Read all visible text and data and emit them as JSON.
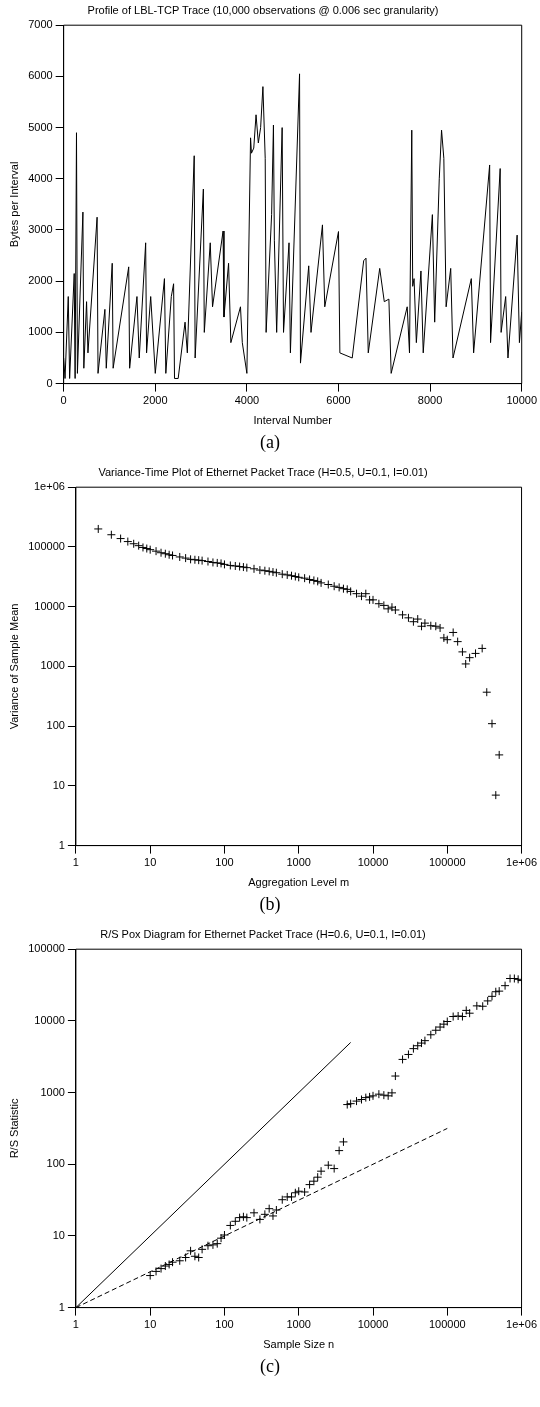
{
  "chart_data": [
    {
      "type": "line",
      "title": "Profile of LBL-TCP Trace (10,000 observations @ 0.006 sec granularity)",
      "xlabel": "Interval Number",
      "ylabel": "Bytes per Interval",
      "color": "#000000",
      "annotations": [
        "(a)"
      ],
      "xlim": [
        0,
        10000
      ],
      "ylim": [
        0,
        7000
      ],
      "xticks": [
        0,
        2000,
        4000,
        6000,
        8000,
        10000
      ],
      "yticks": [
        0,
        1000,
        2000,
        3000,
        4000,
        5000,
        6000,
        7000
      ],
      "x": [
        0,
        30,
        100,
        130,
        230,
        250,
        280,
        300,
        420,
        440,
        500,
        530,
        730,
        750,
        900,
        930,
        1060,
        1080,
        1420,
        1440,
        1600,
        1650,
        1790,
        1810,
        1900,
        2000,
        2200,
        2230,
        2350,
        2400,
        2420,
        2500,
        2650,
        2700,
        2850,
        2870,
        3050,
        3070,
        3200,
        3250,
        3480,
        3500,
        3600,
        3650,
        3860,
        3900,
        4000,
        4080,
        4100,
        4150,
        4200,
        4250,
        4300,
        4350,
        4400,
        4420,
        4540,
        4580,
        4600,
        4650,
        4770,
        4800,
        4920,
        4950,
        5150,
        5170,
        5350,
        5400,
        5650,
        5700,
        6000,
        6030,
        6300,
        6550,
        6600,
        6650,
        6900,
        7000,
        7100,
        7150,
        7500,
        7550,
        7600,
        7620,
        7650,
        7700,
        7800,
        7850,
        8050,
        8100,
        8200,
        8250,
        8300,
        8350,
        8450,
        8500,
        8900,
        8950,
        9300,
        9320,
        9530,
        9550,
        9650,
        9700,
        9900,
        9950,
        10000
      ],
      "values": [
        500,
        100,
        1700,
        100,
        2150,
        100,
        4900,
        200,
        3350,
        300,
        1600,
        600,
        3250,
        200,
        1450,
        300,
        2350,
        300,
        2280,
        300,
        1700,
        500,
        2750,
        600,
        1700,
        200,
        2050,
        200,
        1700,
        1950,
        100,
        100,
        1200,
        600,
        4450,
        500,
        3800,
        1000,
        2750,
        1500,
        2980,
        1300,
        2350,
        800,
        1500,
        800,
        200,
        4800,
        4500,
        4600,
        5250,
        4700,
        5000,
        5800,
        4400,
        1000,
        3300,
        5050,
        2800,
        1000,
        5000,
        1000,
        2750,
        600,
        6050,
        400,
        2300,
        1000,
        3100,
        1500,
        2970,
        600,
        500,
        2400,
        2450,
        600,
        2250,
        1600,
        1650,
        200,
        1500,
        600,
        4950,
        1900,
        2050,
        800,
        2200,
        600,
        3300,
        1200,
        4000,
        4950,
        4400,
        1500,
        2250,
        500,
        2050,
        600,
        4270,
        800,
        4200,
        1000,
        1700,
        500,
        2900,
        800,
        1400
      ]
    },
    {
      "type": "scatter",
      "title": "Variance-Time Plot of Ethernet Packet Trace (H=0.5, U=0.1, I=0.01)",
      "xlabel": "Aggregation Level m",
      "ylabel": "Variance of Sample Mean",
      "color": "#000000",
      "marker": "cross",
      "log": "xy",
      "annotations": [
        "(b)"
      ],
      "xlim": [
        1,
        1000000
      ],
      "ylim": [
        1,
        1000000
      ],
      "xticks": [
        1,
        10,
        100,
        1000,
        10000,
        100000,
        {
          "value": 1000000,
          "label": "1e+06"
        }
      ],
      "yticks": [
        1,
        10,
        100,
        1000,
        10000,
        100000,
        {
          "value": 1000000,
          "label": "1e+06"
        }
      ],
      "x": [
        2,
        3,
        4,
        5,
        6,
        7,
        8,
        9,
        10,
        12,
        14,
        16,
        18,
        20,
        25,
        30,
        35,
        40,
        45,
        50,
        60,
        70,
        80,
        90,
        100,
        120,
        140,
        160,
        180,
        200,
        250,
        300,
        350,
        400,
        450,
        500,
        600,
        700,
        800,
        900,
        1000,
        1200,
        1400,
        1600,
        1800,
        2000,
        2500,
        3000,
        3500,
        4000,
        4500,
        5000,
        6000,
        7000,
        8000,
        9000,
        10000,
        12000,
        14000,
        16000,
        18000,
        20000,
        25000,
        30000,
        35000,
        40000,
        45000,
        50000,
        60000,
        70000,
        80000,
        90000,
        100000,
        120000,
        138000,
        160000,
        177000,
        200000,
        240000,
        295000,
        340000,
        400000,
        450000,
        500000
      ],
      "values": [
        200000,
        160000,
        138000,
        123000,
        113000,
        105000,
        98000,
        94000,
        90000,
        85000,
        80000,
        77000,
        74000,
        72000,
        68000,
        65000,
        62000,
        61000,
        60000,
        59000,
        57000,
        55000,
        54000,
        53000,
        51000,
        49000,
        48000,
        47000,
        46000,
        45000,
        43000,
        41000,
        40000,
        39000,
        38000,
        37000,
        35000,
        34000,
        33000,
        32000,
        31000,
        30000,
        28500,
        27500,
        26500,
        25000,
        23500,
        22000,
        21000,
        20000,
        19500,
        18000,
        16500,
        15000,
        16500,
        13000,
        13000,
        11200,
        10500,
        9200,
        9800,
        8800,
        7300,
        6500,
        5600,
        6200,
        4700,
        5300,
        4800,
        4700,
        4400,
        3000,
        2800,
        3700,
        2600,
        1750,
        1100,
        1400,
        1650,
        2000,
        370,
        110,
        7,
        33
      ]
    },
    {
      "type": "scatter",
      "title": "R/S Pox Diagram for Ethernet Packet Trace (H=0.6, U=0.1, I=0.01)",
      "xlabel": "Sample Size n",
      "ylabel": "R/S Statistic",
      "log": "xy",
      "annotations": [
        "(c)"
      ],
      "xlim": [
        1,
        1000000
      ],
      "ylim": [
        1,
        100000
      ],
      "xticks": [
        1,
        10,
        100,
        1000,
        10000,
        100000,
        {
          "value": 1000000,
          "label": "1e+06"
        }
      ],
      "yticks": [
        1,
        10,
        100,
        1000,
        10000,
        100000
      ],
      "series": [
        {
          "type": "scatter",
          "color": "#000000",
          "marker": "cross",
          "x": [
            10,
            12,
            14,
            16,
            18,
            20,
            25,
            30,
            35,
            40,
            45,
            50,
            60,
            70,
            80,
            90,
            100,
            120,
            140,
            160,
            180,
            200,
            250,
            300,
            350,
            400,
            450,
            500,
            600,
            700,
            800,
            900,
            1000,
            1200,
            1400,
            1600,
            1800,
            2000,
            2500,
            3000,
            3500,
            4000,
            4500,
            5000,
            6000,
            7000,
            8000,
            9000,
            10000,
            12000,
            14000,
            16000,
            18000,
            20000,
            25000,
            30000,
            35000,
            40000,
            45000,
            50000,
            60000,
            70000,
            80000,
            90000,
            100000,
            120000,
            140000,
            160000,
            180000,
            200000,
            250000,
            300000,
            350000,
            400000,
            450000,
            500000,
            600000,
            700000,
            800000,
            900000,
            1000000
          ],
          "values": [
            2.8,
            3.2,
            3.5,
            3.8,
            4,
            4.3,
            4.5,
            5,
            6.2,
            5.2,
            5,
            6.5,
            7.3,
            7.5,
            7.8,
            9.3,
            10.3,
            14,
            16,
            18,
            18.5,
            18,
            21,
            17,
            20,
            24,
            19,
            23,
            32,
            35,
            35,
            40,
            42,
            41,
            52,
            58,
            66,
            80,
            97,
            87,
            155,
            205,
            680,
            700,
            760,
            800,
            850,
            870,
            900,
            950,
            920,
            900,
            990,
            1700,
            2900,
            3400,
            4100,
            4500,
            4900,
            5300,
            6400,
            7400,
            8200,
            9000,
            9800,
            11500,
            11700,
            11500,
            14000,
            12800,
            16200,
            16000,
            19000,
            22000,
            25500,
            26000,
            31000,
            39000,
            39000,
            38000,
            36500
          ]
        },
        {
          "type": "line",
          "color": "#000000",
          "line_style": "solid",
          "x": [
            1,
            5000
          ],
          "values": [
            1,
            5000
          ]
        },
        {
          "type": "line",
          "color": "#000000",
          "line_style": "dashed",
          "x": [
            1,
            100000
          ],
          "values": [
            1,
            316
          ]
        }
      ]
    }
  ]
}
